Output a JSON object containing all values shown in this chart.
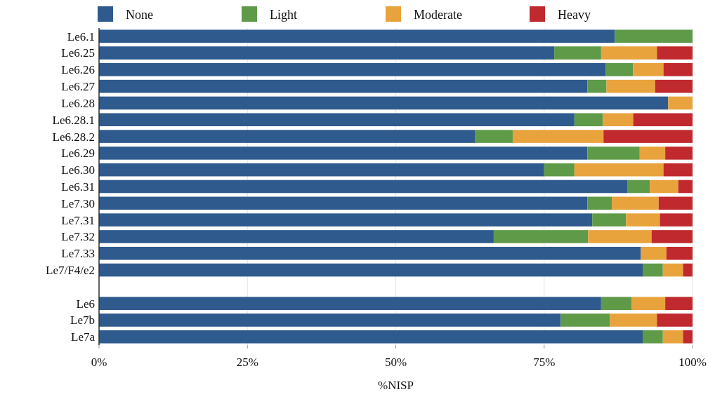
{
  "chart_data": {
    "type": "bar",
    "orientation": "horizontal",
    "stacked": true,
    "xlabel": "%NISP",
    "categories": [
      "Le6.1",
      "Le6.25",
      "Le6.26",
      "Le6.27",
      "Le6.28",
      "Le6.28.1",
      "Le6.28.2",
      "Le6.29",
      "Le6.30",
      "Le6.31",
      "Le7.30",
      "Le7.31",
      "Le7.32",
      "Le7.33",
      "Le7/F4/e2",
      null,
      "Le6",
      "Le7b",
      "Le7a"
    ],
    "series": [
      {
        "name": "None",
        "color": "#2e5a8e",
        "values": [
          86.9,
          76.7,
          85.4,
          82.3,
          95.9,
          80.1,
          63.4,
          82.3,
          75.0,
          89.0,
          82.3,
          83.1,
          66.5,
          91.3,
          91.6,
          null,
          84.6,
          77.8,
          91.6
        ]
      },
      {
        "name": "Light",
        "color": "#5e9a48",
        "values": [
          13.1,
          7.9,
          4.6,
          3.2,
          0,
          4.8,
          6.3,
          8.8,
          5.1,
          3.8,
          4.1,
          5.7,
          15.9,
          0,
          3.4,
          null,
          5.1,
          8.3,
          3.4
        ]
      },
      {
        "name": "Moderate",
        "color": "#e8a33d",
        "values": [
          0,
          9.4,
          5.1,
          8.2,
          4.1,
          5.1,
          15.3,
          4.3,
          15.0,
          4.8,
          7.9,
          5.7,
          10.7,
          4.3,
          3.4,
          null,
          5.7,
          7.9,
          3.4
        ]
      },
      {
        "name": "Heavy",
        "color": "#c0292e",
        "values": [
          0,
          6.0,
          4.9,
          6.3,
          0,
          10.0,
          15.0,
          4.6,
          4.9,
          2.4,
          5.7,
          5.5,
          6.9,
          4.4,
          1.6,
          null,
          4.6,
          6.0,
          1.6
        ]
      }
    ],
    "xlim": [
      0,
      100
    ],
    "xticks": [
      {
        "value": 0,
        "label": "0%"
      },
      {
        "value": 25,
        "label": "25%"
      },
      {
        "value": 50,
        "label": "50%"
      },
      {
        "value": 75,
        "label": "75%"
      },
      {
        "value": 100,
        "label": "100%"
      }
    ],
    "grid": "x",
    "legend": "top"
  }
}
